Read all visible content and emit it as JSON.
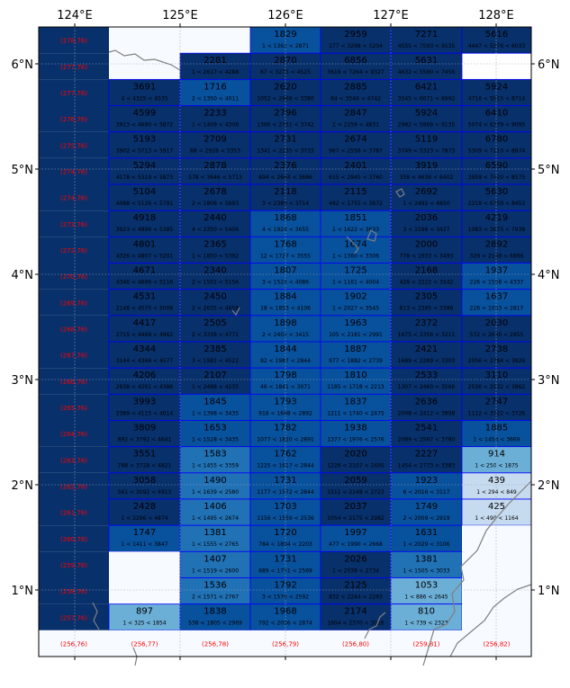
{
  "axes": {
    "x_ticks": [
      "124°E",
      "125°E",
      "126°E",
      "127°E",
      "128°E"
    ],
    "y_ticks": [
      "6°N",
      "5°N",
      "4°N",
      "3°N",
      "2°N",
      "1°N"
    ]
  },
  "grid": {
    "col_lon_start": 123.666,
    "col_lon_step": 0.6667,
    "row_lat_top": 6.333,
    "row_lat_step": 0.25,
    "rows": [
      [
        "(278,76)",
        null,
        "1829|1 < 1362 < 2871",
        "2959|177 < 3298 < 5204",
        "7271|4555 < 7593 < 9535",
        "5616|4447 < 5576 < 6033"
      ],
      [
        "(277,76)",
        null,
        "2281|1 < 2617 < 4288",
        "2870|67 < 3275 < 4525",
        "6856|3619 < 7264 < 9327",
        "5631|4632 < 5590 < 7456"
      ],
      [
        "(277,76)",
        "3691|4 < 4325 < 4535",
        "1716|2 < 1350 < 4011",
        "2620|1052 < 2969 < 3380",
        "2885|64 < 3546 < 4742",
        "6421|3545 < 6071 < 8992",
        "5924|4716 < 5515 < 8714"
      ],
      [
        "(276,76)",
        "4599|3913 < 4690 < 5872",
        "2233|1 < 1409 < 4308",
        "2796|1366 < 2751 < 3742",
        "2847|2 < 2259 < 4831",
        "5924|2982 < 5969 < 9135",
        "6410|5074 < 6379 < 9095"
      ],
      [
        "(275,76)",
        "5193|3902 < 5713 < 5917",
        "2709|68 < 2928 < 3353",
        "2731|1341 < 2235 < 3733",
        "2674|967 < 2558 < 3787",
        "5119|3749 < 5323 < 7873",
        "6780|5309 < 7110 < 8874"
      ],
      [
        "(274,76)",
        "5294|4178 < 5319 < 5873",
        "2878|578 < 3646 < 5713",
        "2376|494 < 2663 < 3686",
        "2401|615 < 2945 < 3760",
        "3919|358 < 4636 < 6402",
        "6590|3958 < 7020 < 8575"
      ],
      [
        "(274,76)",
        "5104|4088 < 5126 < 5791",
        "2678|2 < 1806 < 5693",
        "2118|3 < 2389 < 3714",
        "2115|482 < 1755 < 3672",
        "2692|1 < 2492 < 4850",
        "5630|2218 < 6759 < 8453"
      ],
      [
        "(273,76)",
        "4918|3923 < 4896 < 5385",
        "2440|4 < 2350 < 5406",
        "1868|4 < 1924 < 3655",
        "1851|1 < 1622 < 3633",
        "2036|3 < 1596 < 3427",
        "4219|1083 < 3675 < 7938"
      ],
      [
        "(272,76)",
        "4801|4326 < 4807 < 5201",
        "2365|1 < 1850 < 5392",
        "1768|12 < 1727 < 3555",
        "1674|1 < 1360 < 3306",
        "2000|778 < 1933 < 3493",
        "2892|329 < 2149 < 6896"
      ],
      [
        "(270,76)",
        "4671|4346 < 4696 < 5116",
        "2340|2 < 1501 < 5156",
        "1807|3 < 1524 < 4086",
        "1725|1 < 1161 < 4004",
        "2168|428 < 2222 < 3542",
        "1937|226 < 1558 < 4337"
      ],
      [
        "(269,76)",
        "4531|2148 < 4570 < 5008",
        "2450|2 < 2635 < 4659",
        "1884|18 < 1853 < 4106",
        "1902|1 < 2027 < 3545",
        "2305|813 < 2395 < 3386",
        "1637|226 < 1053 < 2817"
      ],
      [
        "(268,76)",
        "4417|2715 < 4468 < 4962",
        "2505|2 < 3338 < 4771",
        "1898|2 < 2402 < 3415",
        "1963|105 < 2181 < 2991",
        "2372|1675 < 2356 < 3211",
        "2030|572 < 2030 < 2855"
      ],
      [
        "(267,76)",
        "4344|3144 < 4366 < 4577",
        "2385|3 < 1981 < 4522",
        "1844|82 < 1987 < 2844",
        "1887|977 < 1882 < 2739",
        "2421|1689 < 2289 < 3303",
        "2738|2056 < 2784 < 3826"
      ],
      [
        "(266,76)",
        "4206|2638 < 4291 < 4386",
        "2107|1 < 2488 < 4235",
        "1798|46 < 1841 < 3071",
        "1810|1185 < 1718 < 2213",
        "2533|1307 < 2460 < 3566",
        "3110|2536 < 3132 < 3862"
      ],
      [
        "(265,76)",
        "3993|2389 < 4115 < 4614",
        "1845|1 < 1398 < 3435",
        "1793|918 < 1688 < 2892",
        "1837|1211 < 1740 < 2475",
        "2636|2008 < 2412 < 3898",
        "2747|1112 < 3322 < 3726"
      ],
      [
        "(264,76)",
        "3809|892 < 3792 < 4641",
        "1653|1 < 1528 < 3435",
        "1782|1077 < 1820 < 2891",
        "1938|1377 < 1976 < 2576",
        "2541|2089 < 2567 < 3780",
        "1885|1 < 1454 < 3669"
      ],
      [
        "(263,76)",
        "3551|788 < 3728 < 4821",
        "1583|1 < 1455 < 3359",
        "1762|1225 < 1617 < 2844",
        "2020|1226 < 2107 < 2495",
        "2227|1454 < 2773 < 3383",
        "914|1 < 250 < 1875"
      ],
      [
        "(262,76)",
        "3058|561 < 3092 < 4913",
        "1490|1 < 1639 < 2580",
        "1731|1177 < 1572 < 2844",
        "2059|1511 < 2148 < 2723",
        "1923|6 < 2016 < 3117",
        "439|1 < 294 < 849"
      ],
      [
        "(261,76)",
        "2428|1 < 2296 < 4874",
        "1406|1 < 1495 < 2674",
        "1703|1156 < 1559 < 2536",
        "2037|1054 < 2175 < 2982",
        "1749|2 < 2009 < 2919",
        "425|1 < 490 < 1164"
      ],
      [
        "(260,76)",
        "1747|1 < 1411 < 3847",
        "1381|1 < 1555 < 2765",
        "1720|784 < 1894 < 2203",
        "1997|477 < 1990 < 2668",
        "1631|1 < 2029 < 3106",
        null
      ],
      [
        "(259,76)",
        null,
        "1407|1 < 1519 < 2600",
        "1731|889 < 1751 < 2569",
        "2026|1 < 2038 < 2734",
        "1381|1 < 1505 < 3033",
        null
      ],
      [
        "(258,76)",
        null,
        "1536|2 < 1571 < 2767",
        "1792|3 < 1576 < 2592",
        "2125|832 < 2244 < 2263",
        "1053|1 < 886 < 2645",
        null
      ],
      [
        "(257,76)",
        "897|1 < 325 < 1854",
        "1838|538 < 1805 < 2969",
        "1968|792 < 2056 < 2874",
        "2174|1604 < 2370 < 3016",
        "810|1 < 739 < 2323",
        null
      ],
      [
        "(256,76)",
        "(256,77)",
        "(256,78)",
        "(256,79)",
        "(256,80)",
        "(259,81)",
        "(256,82)"
      ]
    ]
  },
  "colors": {
    "deep": "#08306b",
    "dark": "#08519c",
    "mid": "#2171b5",
    "light": "#6baed6",
    "pale": "#c6dbef",
    "blank": "#f7fbff",
    "label_red": "#ff0000",
    "coast": "#7f7f7f",
    "cell_border": "#0000ff"
  }
}
